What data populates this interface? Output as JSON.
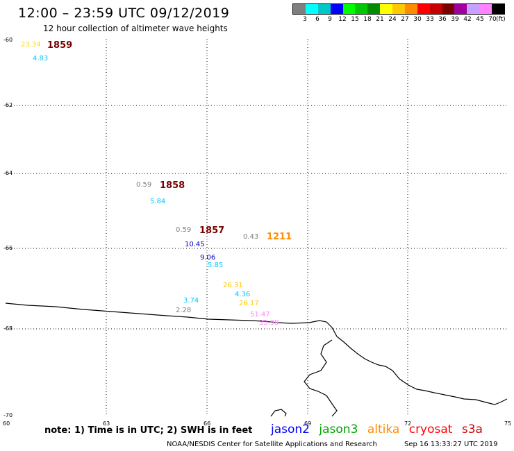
{
  "header": {
    "title": "12:00 – 23:59 UTC 09/12/2019",
    "subtitle": "12 hour collection of altimeter wave heights"
  },
  "color_scale": {
    "colors": [
      "#7f7f7f",
      "#00ffff",
      "#00c8c8",
      "#0000ff",
      "#00ff00",
      "#00c800",
      "#008c00",
      "#ffff00",
      "#ffc800",
      "#ff8c00",
      "#ff0000",
      "#c80000",
      "#780000",
      "#a000a0",
      "#c8a0ff",
      "#ff82ff",
      "#000000"
    ],
    "labels": [
      "3",
      "6",
      "9",
      "12",
      "15",
      "18",
      "21",
      "24",
      "27",
      "30",
      "33",
      "36",
      "39",
      "42",
      "45",
      "70"
    ],
    "unit": "(ft)"
  },
  "axes": {
    "lat_labels": [
      "-60",
      "-62",
      "-64",
      "-66",
      "-68",
      "-70"
    ],
    "lon_labels": [
      "60",
      "63",
      "66",
      "69",
      "72",
      "75"
    ]
  },
  "observations": [
    {
      "text": "23.34",
      "color": "#ffd700"
    },
    {
      "text": "4.83",
      "color": "#00c8ff"
    },
    {
      "text": "0.59",
      "color": "#7f7f7f"
    },
    {
      "text": "5.84",
      "color": "#00c8ff"
    },
    {
      "text": "0.59",
      "color": "#7f7f7f"
    },
    {
      "text": "10.45",
      "color": "#0000c0"
    },
    {
      "text": "9.06",
      "color": "#0000c0"
    },
    {
      "text": "5.85",
      "color": "#00c8ff"
    },
    {
      "text": "0.43",
      "color": "#7f7f7f"
    },
    {
      "text": "26.31",
      "color": "#ffc800"
    },
    {
      "text": "4.36",
      "color": "#00c8ff"
    },
    {
      "text": "26.17",
      "color": "#ffc800"
    },
    {
      "text": "3.74",
      "color": "#00c8ff"
    },
    {
      "text": "2.28",
      "color": "#7f7f7f"
    },
    {
      "text": "51.47",
      "color": "#ff82ff"
    },
    {
      "text": "33.99",
      "color": "#ff82ff"
    }
  ],
  "pass_times": [
    {
      "text": "1859",
      "color": "#780000"
    },
    {
      "text": "1858",
      "color": "#780000"
    },
    {
      "text": "1857",
      "color": "#780000"
    },
    {
      "text": "1211",
      "color": "#ff8c00"
    }
  ],
  "footer": {
    "note": "note: 1) Time is in UTC; 2) SWH is in feet",
    "satellites": [
      {
        "name": "jason2",
        "color": "#0000ff"
      },
      {
        "name": "jason3",
        "color": "#00a000"
      },
      {
        "name": "altika",
        "color": "#ff8c00"
      },
      {
        "name": "cryosat",
        "color": "#ff0000"
      },
      {
        "name": "s3a",
        "color": "#c80000"
      }
    ],
    "credit": "NOAA/NESDIS Center for Satellite Applications and Research",
    "timestamp": "Sep 16 13:33:27 UTC 2019"
  }
}
